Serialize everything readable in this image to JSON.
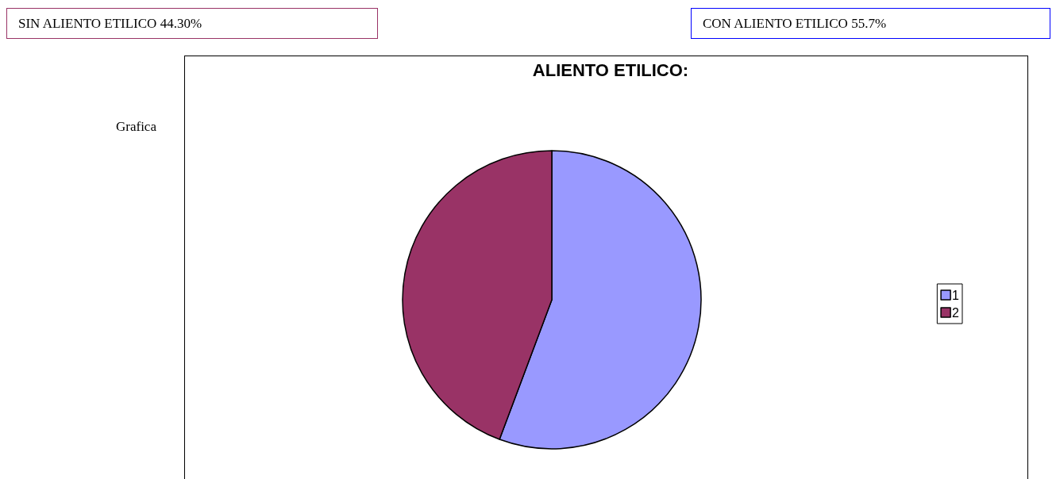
{
  "chart_data": {
    "type": "pie",
    "title": "ALIENTO ETILICO:",
    "categories": [
      "1",
      "2"
    ],
    "values": [
      55.7,
      44.3
    ],
    "colors": [
      "#9999ff",
      "#993366"
    ],
    "legend": "right",
    "annotations": [
      "SIN ALIENTO ETILICO 44.30%",
      "CON ALIENTO ETILICO 55.7%",
      "Grafica"
    ]
  }
}
